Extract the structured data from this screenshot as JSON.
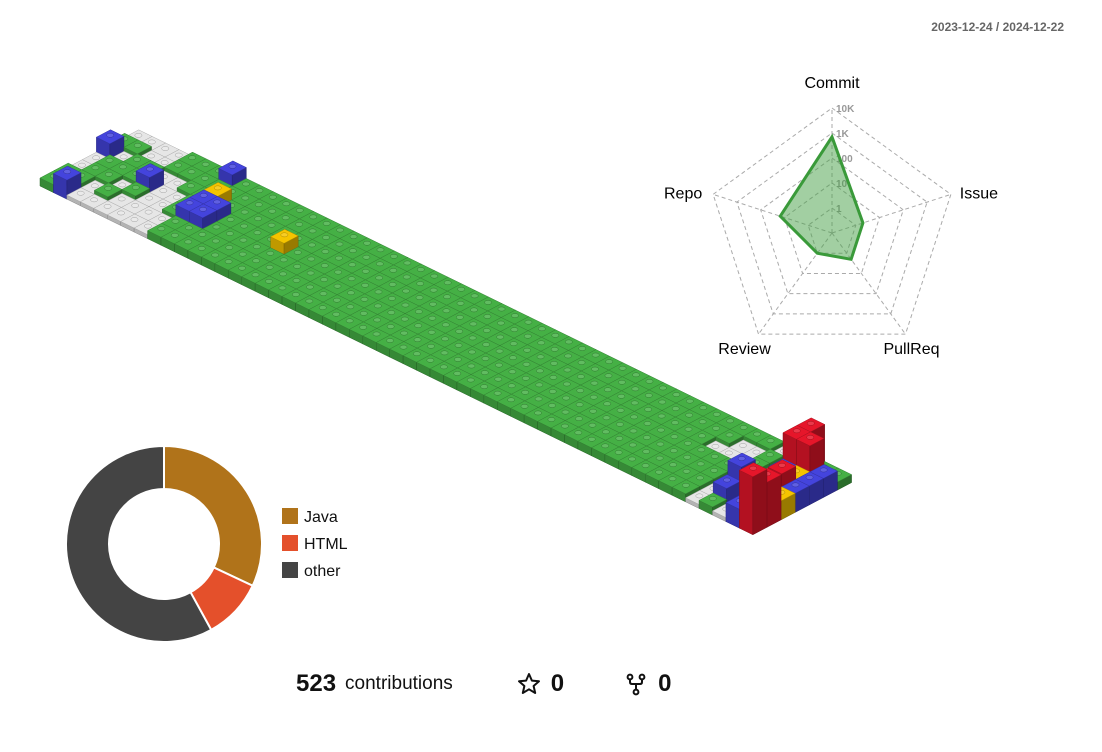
{
  "date_range": "2023-12-24 / 2024-12-22",
  "stats": {
    "contributions": "523",
    "contributions_label": "contributions",
    "stars": "0",
    "forks": "0"
  },
  "icons": [
    "star-icon",
    "fork-icon"
  ],
  "colors": {
    "empty": "#e6e6e6",
    "level1": "#45b045",
    "level2": "#4444dd",
    "level3": "#f5c400",
    "level4": "#e6162a"
  },
  "chart_data": [
    {
      "type": "radar",
      "axes": [
        "Commit",
        "Issue",
        "PullReq",
        "Review",
        "Repo"
      ],
      "scale": "log",
      "tick_labels": [
        "1",
        "10",
        "100",
        "1K",
        "10K"
      ],
      "values": [
        700,
        2,
        2,
        1,
        15
      ]
    },
    {
      "type": "pie",
      "labels": [
        "Java",
        "HTML",
        "other"
      ],
      "values": [
        32,
        10,
        58
      ],
      "colors": [
        "#b0731a",
        "#e4502b",
        "#444444"
      ]
    }
  ]
}
